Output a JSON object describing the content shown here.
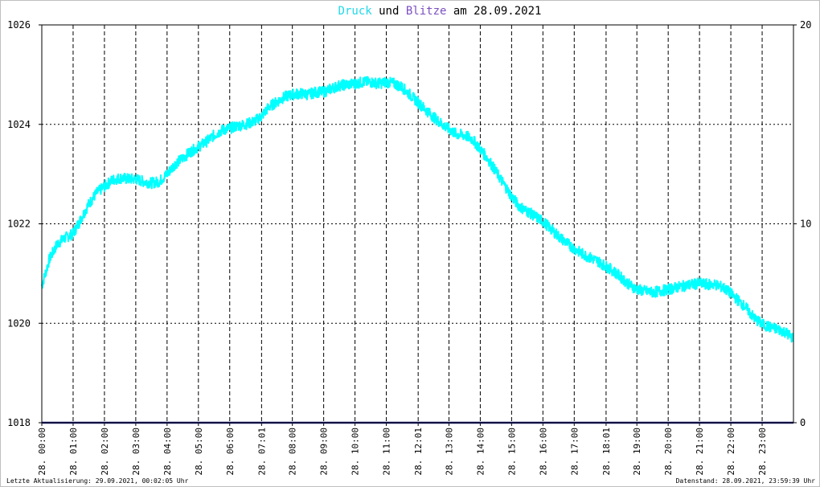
{
  "chart_data": {
    "type": "line",
    "title": {
      "part1": "Druck",
      "part2": " und ",
      "part3": "Blitze",
      "part4": " am 28.09.2021"
    },
    "title_colors": {
      "druck": "#22d8e8",
      "blitze": "#7b4fc2",
      "rest": "#000000"
    },
    "xlim_hours": [
      0,
      24
    ],
    "ylim_left": [
      1018,
      1026
    ],
    "ylim_right": [
      0,
      20
    ],
    "y_ticks_left": [
      "1018",
      "1020",
      "1022",
      "1024",
      "1026"
    ],
    "y_ticks_right": [
      "0",
      "10",
      "20"
    ],
    "x_ticks": [
      {
        "h": 0.0,
        "label": "28. 00:00"
      },
      {
        "h": 1.0,
        "label": "28. 01:00"
      },
      {
        "h": 2.0,
        "label": "28. 02:00"
      },
      {
        "h": 3.0,
        "label": "28. 03:00"
      },
      {
        "h": 4.0,
        "label": "28. 04:00"
      },
      {
        "h": 5.0,
        "label": "28. 05:00"
      },
      {
        "h": 6.0,
        "label": "28. 06:00"
      },
      {
        "h": 7.017,
        "label": "28. 07:01"
      },
      {
        "h": 8.0,
        "label": "28. 08:00"
      },
      {
        "h": 9.0,
        "label": "28. 09:00"
      },
      {
        "h": 10.0,
        "label": "28. 10:00"
      },
      {
        "h": 11.0,
        "label": "28. 11:00"
      },
      {
        "h": 12.017,
        "label": "28. 12:01"
      },
      {
        "h": 13.0,
        "label": "28. 13:00"
      },
      {
        "h": 14.0,
        "label": "28. 14:00"
      },
      {
        "h": 15.0,
        "label": "28. 15:00"
      },
      {
        "h": 16.0,
        "label": "28. 16:00"
      },
      {
        "h": 17.0,
        "label": "28. 17:00"
      },
      {
        "h": 18.017,
        "label": "28. 18:01"
      },
      {
        "h": 19.0,
        "label": "28. 19:00"
      },
      {
        "h": 20.0,
        "label": "28. 20:00"
      },
      {
        "h": 21.0,
        "label": "28. 21:00"
      },
      {
        "h": 22.0,
        "label": "28. 22:00"
      },
      {
        "h": 23.0,
        "label": "28. 23:00"
      }
    ],
    "grid": true,
    "series": [
      {
        "color": "#00ffff",
        "x_hours": [
          0.0,
          0.25,
          0.5,
          0.75,
          1.0,
          1.25,
          1.5,
          1.75,
          2.0,
          2.25,
          2.5,
          2.75,
          3.0,
          3.25,
          3.5,
          3.75,
          4.0,
          4.25,
          4.5,
          4.75,
          5.0,
          5.25,
          5.5,
          5.75,
          6.0,
          6.25,
          6.5,
          6.75,
          7.0,
          7.25,
          7.5,
          7.75,
          8.0,
          8.25,
          8.5,
          8.75,
          9.0,
          9.25,
          9.5,
          9.75,
          10.0,
          10.25,
          10.5,
          10.75,
          11.0,
          11.25,
          11.5,
          11.75,
          12.0,
          12.25,
          12.5,
          12.75,
          13.0,
          13.25,
          13.5,
          13.75,
          14.0,
          14.25,
          14.5,
          14.75,
          15.0,
          15.25,
          15.5,
          15.75,
          16.0,
          16.25,
          16.5,
          16.75,
          17.0,
          17.25,
          17.5,
          17.75,
          18.0,
          18.25,
          18.5,
          18.75,
          19.0,
          19.25,
          19.5,
          19.75,
          20.0,
          20.25,
          20.5,
          20.75,
          21.0,
          21.25,
          21.5,
          21.75,
          22.0,
          22.25,
          22.5,
          22.75,
          23.0,
          23.25,
          23.5,
          23.75,
          23.98
        ],
        "values": [
          1020.75,
          1021.3,
          1021.6,
          1021.72,
          1021.8,
          1022.1,
          1022.4,
          1022.62,
          1022.75,
          1022.88,
          1022.92,
          1022.9,
          1022.9,
          1022.85,
          1022.82,
          1022.85,
          1023.0,
          1023.2,
          1023.32,
          1023.45,
          1023.55,
          1023.65,
          1023.78,
          1023.88,
          1023.92,
          1023.97,
          1024.0,
          1024.05,
          1024.15,
          1024.35,
          1024.45,
          1024.55,
          1024.6,
          1024.62,
          1024.6,
          1024.65,
          1024.65,
          1024.72,
          1024.78,
          1024.8,
          1024.82,
          1024.85,
          1024.85,
          1024.82,
          1024.85,
          1024.82,
          1024.75,
          1024.6,
          1024.45,
          1024.3,
          1024.15,
          1024.02,
          1023.9,
          1023.8,
          1023.78,
          1023.7,
          1023.5,
          1023.3,
          1023.05,
          1022.8,
          1022.55,
          1022.35,
          1022.25,
          1022.15,
          1022.05,
          1021.9,
          1021.75,
          1021.62,
          1021.5,
          1021.4,
          1021.32,
          1021.25,
          1021.15,
          1021.05,
          1020.92,
          1020.78,
          1020.68,
          1020.65,
          1020.62,
          1020.65,
          1020.68,
          1020.72,
          1020.75,
          1020.78,
          1020.8,
          1020.78,
          1020.78,
          1020.72,
          1020.6,
          1020.45,
          1020.3,
          1020.1,
          1019.98,
          1019.92,
          1019.88,
          1019.82,
          1019.7
        ]
      },
      {
        "color": "#202080",
        "x_hours": [
          0.0,
          24.0
        ],
        "values": [
          0,
          0
        ],
        "axis": "right"
      }
    ]
  },
  "footer": {
    "left": "Letzte Aktualisierung: 29.09.2021, 00:02:05 Uhr",
    "right": "Datenstand: 28.09.2021, 23:59:39 Uhr"
  }
}
